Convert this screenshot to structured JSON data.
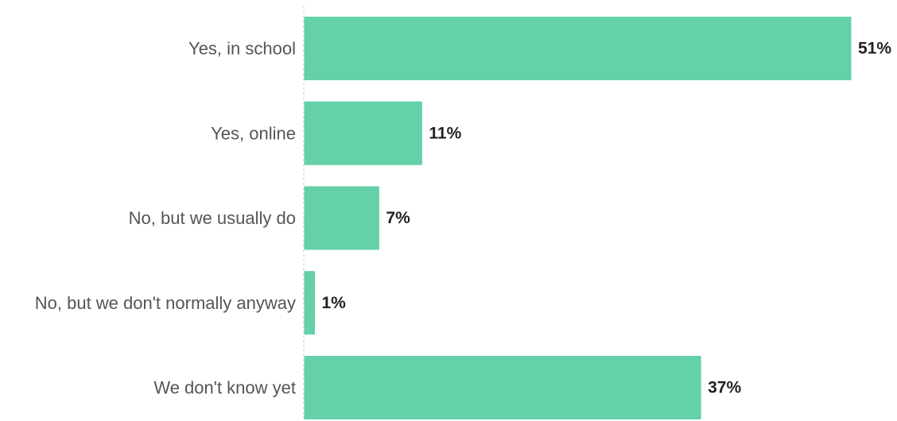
{
  "chart_data": {
    "type": "bar",
    "orientation": "horizontal",
    "categories": [
      "Yes, in school",
      "Yes, online",
      "No, but we usually do",
      "No, but we don't normally anyway",
      "We don't know yet"
    ],
    "values": [
      51,
      11,
      7,
      1,
      37
    ],
    "value_labels": [
      "51%",
      "11%",
      "7%",
      "1%",
      "37%"
    ],
    "unit": "%",
    "title": "",
    "xlabel": "",
    "ylabel": "",
    "xlim": [
      0,
      51
    ],
    "grid": false,
    "legend": "none",
    "bar_color": "#64d1a8",
    "baseline_style": "dashed"
  }
}
